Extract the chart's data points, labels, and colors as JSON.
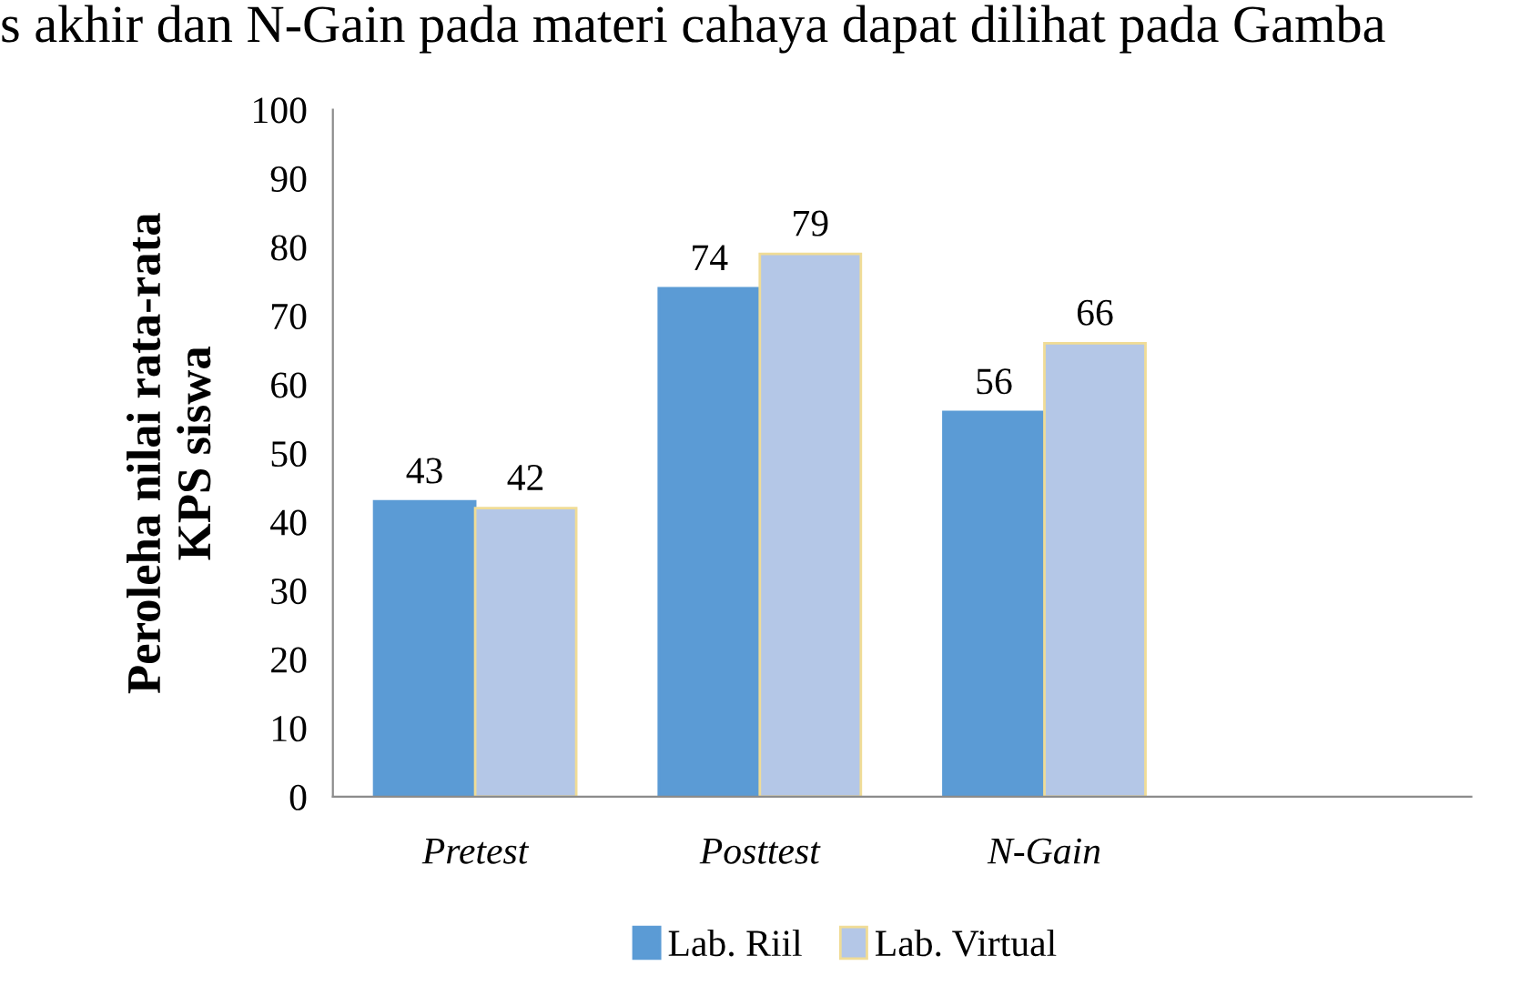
{
  "chart_data": {
    "type": "bar",
    "ylabel": "Peroleha nilai rata-rata\nKPS siswa",
    "categories": [
      "Pretest",
      "Posttest",
      "N-Gain",
      null
    ],
    "series": [
      {
        "name": "Lab. Riil",
        "color": "#5b9bd5",
        "values": [
          43,
          74,
          56,
          null
        ]
      },
      {
        "name": "Lab. Virtual",
        "color": "#b4c7e7",
        "values": [
          42,
          79,
          66,
          null
        ]
      }
    ],
    "ylim": [
      0,
      100
    ],
    "yticks": [
      0,
      10,
      20,
      30,
      40,
      50,
      60,
      70,
      80,
      90,
      100
    ],
    "data_labels": true,
    "grid": false,
    "legend": "bottom",
    "annotations": [
      "s akhir dan N-Gain pada materi cahaya dapat dilihat pada Gamba"
    ]
  }
}
